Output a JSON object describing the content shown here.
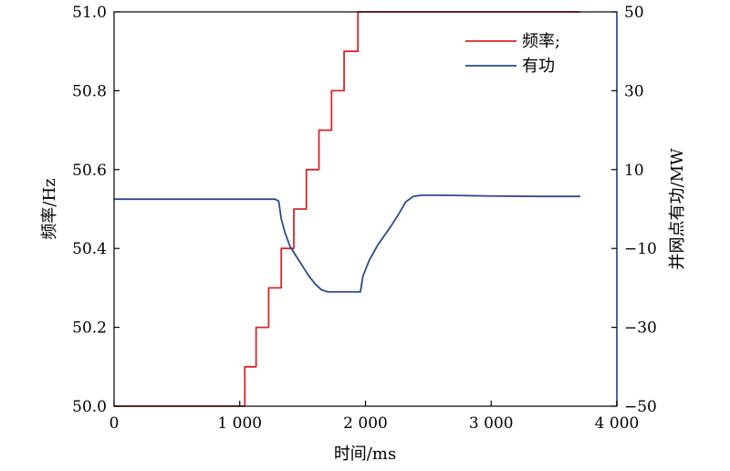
{
  "chart_data": {
    "type": "line",
    "title": "",
    "xlabel": "时间/ms",
    "ylabel_left": "频率/Hz",
    "ylabel_right": "并网点有功/MW",
    "xlim": [
      0,
      4000
    ],
    "ylim_left": [
      50.0,
      51.0
    ],
    "ylim_right": [
      -50,
      50
    ],
    "x_ticks": [
      0,
      1000,
      2000,
      3000,
      4000
    ],
    "x_tick_labels": [
      "0",
      "1 000",
      "2 000",
      "3 000",
      "4 000"
    ],
    "y_left_ticks": [
      50.0,
      50.2,
      50.4,
      50.6,
      50.8,
      51.0
    ],
    "y_left_tick_labels": [
      "50.0",
      "50.2",
      "50.4",
      "50.6",
      "50.8",
      "51.0"
    ],
    "y_right_ticks": [
      -50,
      -30,
      -10,
      10,
      30,
      50
    ],
    "y_right_tick_labels": [
      "−50",
      "−30",
      "−10",
      "10",
      "30",
      "50"
    ],
    "grid": false,
    "legend_position": "top-right",
    "series": [
      {
        "name": "频率;",
        "axis": "left",
        "color": "#d7262b",
        "x": [
          0,
          1040,
          1040,
          1040,
          1130,
          1130,
          1230,
          1230,
          1330,
          1330,
          1430,
          1430,
          1530,
          1530,
          1630,
          1630,
          1730,
          1730,
          1830,
          1830,
          1940,
          1940,
          3710
        ],
        "y": [
          50.0,
          50.0,
          50.0,
          50.1,
          50.1,
          50.2,
          50.2,
          50.3,
          50.3,
          50.4,
          50.4,
          50.5,
          50.5,
          50.6,
          50.6,
          50.7,
          50.7,
          50.8,
          50.8,
          50.9,
          50.9,
          51.0,
          51.0
        ]
      },
      {
        "name": "有功",
        "axis": "right",
        "color": "#2a4a8e",
        "x": [
          0,
          1280,
          1310,
          1330,
          1360,
          1400,
          1450,
          1500,
          1550,
          1600,
          1650,
          1700,
          1750,
          1800,
          1900,
          1960,
          1980,
          2030,
          2100,
          2200,
          2270,
          2320,
          2380,
          2450,
          2600,
          2800,
          3000,
          3400,
          3710
        ],
        "y": [
          2.5,
          2.5,
          2.0,
          -2.5,
          -6.0,
          -9.5,
          -12.0,
          -14.5,
          -17.0,
          -19.0,
          -20.5,
          -21.0,
          -21.0,
          -21.0,
          -21.0,
          -21.0,
          -17.0,
          -13.0,
          -9.0,
          -4.5,
          -1.0,
          1.8,
          3.2,
          3.5,
          3.5,
          3.4,
          3.3,
          3.2,
          3.2
        ]
      }
    ]
  }
}
